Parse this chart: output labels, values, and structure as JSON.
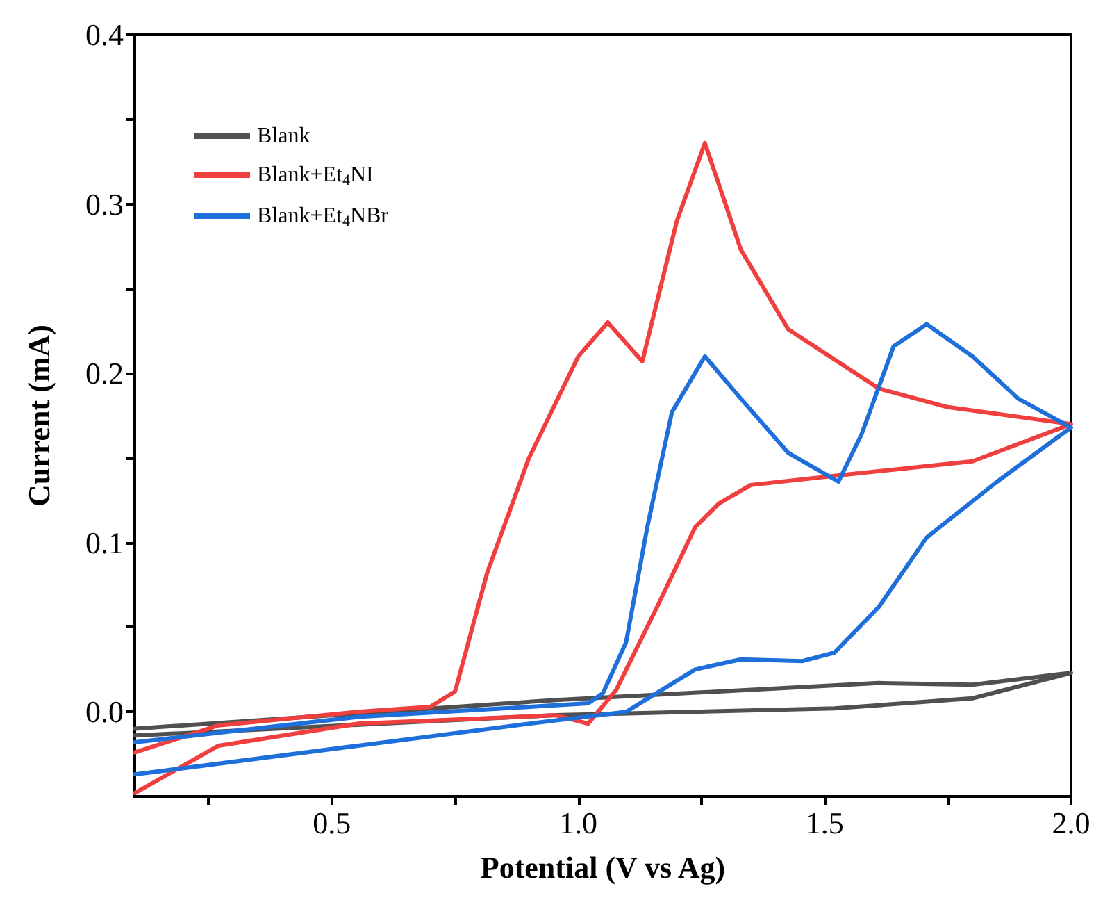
{
  "chart_data": {
    "type": "line",
    "xlabel": "Potential (V vs Ag)",
    "ylabel": "Current (mA)",
    "xlim": [
      0.1,
      2.0
    ],
    "ylim": [
      -0.05,
      0.4
    ],
    "xticks": [
      {
        "value": 0.25,
        "label": null
      },
      0.5,
      {
        "value": 0.75,
        "label": null
      },
      {
        "value": 1,
        "label": "1.0"
      },
      {
        "value": 1.25,
        "label": null
      },
      1.5,
      {
        "value": 1.75,
        "label": null
      },
      {
        "value": 2,
        "label": "2.0"
      }
    ],
    "yticks": [
      {
        "value": 0,
        "label": "0.0"
      },
      {
        "value": 0.05,
        "label": null
      },
      0.1,
      {
        "value": 0.15,
        "label": null
      },
      0.2,
      {
        "value": 0.25,
        "label": null
      },
      0.3,
      {
        "value": 0.35,
        "label": null
      },
      0.4
    ],
    "grid": false,
    "legend": "top left",
    "marker": "none",
    "line_style": "solid",
    "series": [
      {
        "name": "Blank",
        "color": "#505050",
        "x": [
          0.1,
          0.955,
          1.61,
          1.8,
          2.0,
          1.8,
          1.52,
          0.955,
          0.1
        ],
        "values": [
          -0.01,
          0.007,
          0.017,
          0.016,
          0.023,
          0.008,
          0.002,
          -0.002,
          -0.014
        ]
      },
      {
        "name": "Blank+Et$_{4}$NI",
        "color": "#ef3f3f",
        "x": [
          0.1,
          0.27,
          0.553,
          0.7,
          0.75,
          0.815,
          0.9,
          1.0,
          1.06,
          1.13,
          1.2,
          1.257,
          1.33,
          1.426,
          1.61,
          1.75,
          2.0,
          1.8,
          1.538,
          1.35,
          1.285,
          1.237,
          1.16,
          1.077,
          1.02,
          0.955,
          0.553,
          0.27,
          0.1
        ],
        "values": [
          -0.024,
          -0.008,
          0.0,
          0.003,
          0.012,
          0.082,
          0.15,
          0.21,
          0.23,
          0.207,
          0.29,
          0.336,
          0.273,
          0.226,
          0.191,
          0.18,
          0.17,
          0.148,
          0.14,
          0.134,
          0.123,
          0.109,
          0.062,
          0.013,
          -0.007,
          -0.002,
          -0.007,
          -0.02,
          -0.048
        ]
      },
      {
        "name": "Blank+Et$_{4}$NBr",
        "color": "#1f6fdb",
        "x": [
          0.1,
          0.553,
          1.02,
          1.05,
          1.097,
          1.14,
          1.19,
          1.257,
          1.33,
          1.426,
          1.528,
          1.575,
          1.64,
          1.707,
          1.8,
          1.893,
          2.0,
          1.85,
          1.707,
          1.61,
          1.52,
          1.455,
          1.33,
          1.237,
          1.097,
          0.955,
          0.553,
          0.1
        ],
        "values": [
          -0.018,
          -0.003,
          0.005,
          0.011,
          0.041,
          0.109,
          0.177,
          0.21,
          0.185,
          0.153,
          0.136,
          0.164,
          0.216,
          0.229,
          0.21,
          0.185,
          0.168,
          0.136,
          0.103,
          0.062,
          0.035,
          0.03,
          0.031,
          0.025,
          0.0,
          -0.005,
          -0.02,
          -0.037
        ]
      }
    ]
  }
}
